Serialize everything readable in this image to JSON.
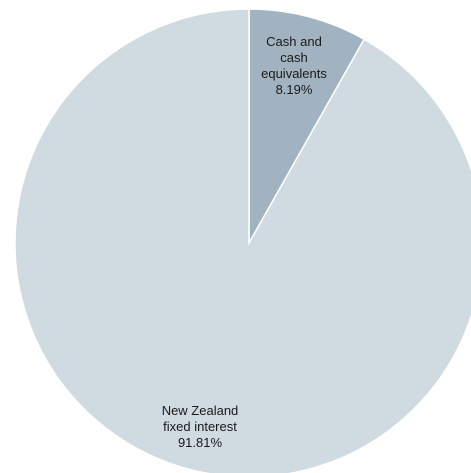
{
  "chart_data": {
    "type": "pie",
    "title": "",
    "slices": [
      {
        "label_lines": [
          "Cash and",
          "cash",
          "equivalents"
        ],
        "value_label": "8.19%",
        "value": 8.19,
        "color": "#a1b3c0"
      },
      {
        "label_lines": [
          "New Zealand",
          "fixed interest"
        ],
        "value_label": "91.81%",
        "value": 91.81,
        "color": "#cfdae1"
      }
    ],
    "start_angle": "12 o'clock",
    "direction": "clockwise",
    "slice_border_color": "#ffffff"
  }
}
